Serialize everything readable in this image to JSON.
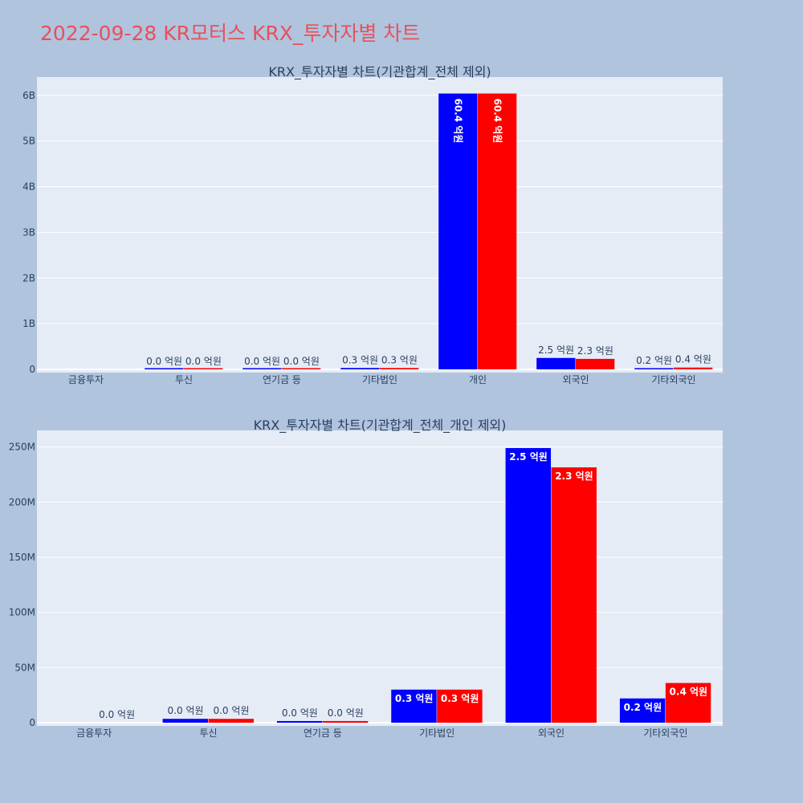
{
  "title": "2022-09-28 KR모터스 KRX_투자자별 차트",
  "colors": {
    "series_a": "#0000ff",
    "series_b": "#ff0000",
    "plot_bg": "#e5ecf6",
    "page_bg": "#b0c4de",
    "title": "#e8505b"
  },
  "chart_data": [
    {
      "type": "bar",
      "title": "KRX_투자자별 차트(기관합계_전체 제외)",
      "categories": [
        "금융투자",
        "투신",
        "연기금 등",
        "기타법인",
        "개인",
        "외국인",
        "기타외국인"
      ],
      "ylim": [
        0,
        6400000000
      ],
      "yticks": [
        0,
        1000000000,
        2000000000,
        3000000000,
        4000000000,
        5000000000,
        6000000000
      ],
      "ytick_labels": [
        "0",
        "1B",
        "2B",
        "3B",
        "4B",
        "5B",
        "6B"
      ],
      "grid": true,
      "series": [
        {
          "color": "#0000ff",
          "values": [
            0,
            1000000,
            1000000,
            30000000,
            6040000000,
            250000000,
            20000000
          ],
          "labels": [
            "",
            "0.0 억원",
            "0.0 억원",
            "0.3 억원",
            "60.4 억원",
            "2.5 억원",
            "0.2 억원"
          ]
        },
        {
          "color": "#ff0000",
          "values": [
            0,
            1000000,
            1000000,
            30000000,
            6040000000,
            230000000,
            40000000
          ],
          "labels": [
            "",
            "0.0 억원",
            "0.0 억원",
            "0.3 억원",
            "60.4 억원",
            "2.3 억원",
            "0.4 억원"
          ]
        }
      ]
    },
    {
      "type": "bar",
      "title": "KRX_투자자별 차트(기관합계_전체_개인 제외)",
      "categories": [
        "금융투자",
        "투신",
        "연기금 등",
        "기타법인",
        "외국인",
        "기타외국인"
      ],
      "ylim": [
        0,
        265000000
      ],
      "yticks": [
        0,
        50000000,
        100000000,
        150000000,
        200000000,
        250000000
      ],
      "ytick_labels": [
        "0",
        "50M",
        "100M",
        "150M",
        "200M",
        "250M"
      ],
      "grid": true,
      "series": [
        {
          "color": "#0000ff",
          "values": [
            0,
            3500000,
            1500000,
            30000000,
            249000000,
            22000000
          ],
          "labels": [
            "",
            "0.0 억원",
            "0.0 억원",
            "0.3 억원",
            "2.5 억원",
            "0.2 억원"
          ]
        },
        {
          "color": "#ff0000",
          "values": [
            0,
            3500000,
            1500000,
            30000000,
            231500000,
            36000000
          ],
          "labels": [
            "0.0 억원",
            "0.0 억원",
            "0.0 억원",
            "0.3 억원",
            "2.3 억원",
            "0.4 억원"
          ]
        }
      ]
    }
  ]
}
